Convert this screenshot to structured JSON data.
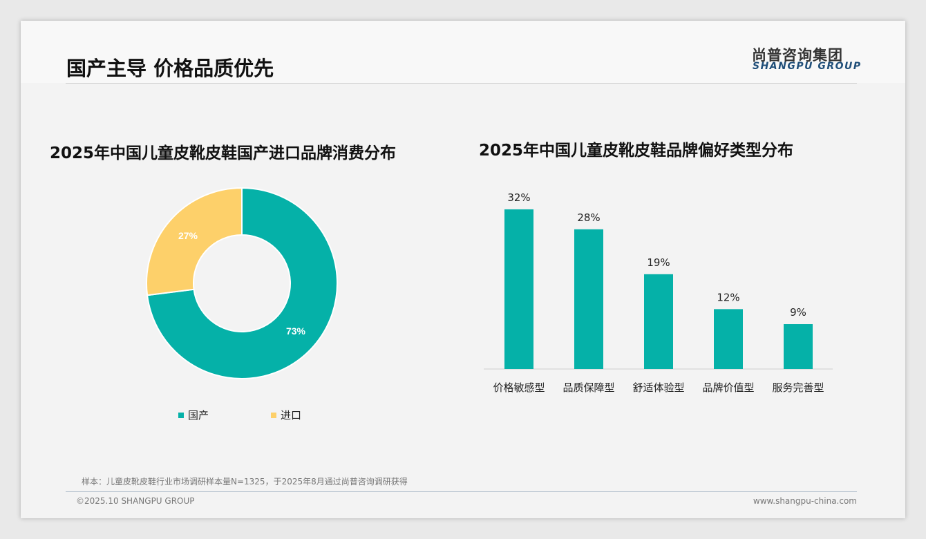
{
  "header": {
    "title": "国产主导 价格品质优先",
    "logo_cn": "尚普咨询集团",
    "logo_en": "SHANGPU GROUP"
  },
  "footer": {
    "note": "样本：儿童皮靴皮鞋行业市场调研样本量N=1325，于2025年8月通过尚普咨询调研获得",
    "copyright": "©2025.10 SHANGPU GROUP",
    "url": "www.shangpu-china.com"
  },
  "colors": {
    "teal": "#05b1a8",
    "yellow": "#fdd06a"
  },
  "chart_data": [
    {
      "type": "pie",
      "title": "2025年中国儿童皮靴皮鞋国产进口品牌消费分布",
      "categories": [
        "国产",
        "进口"
      ],
      "values": [
        73,
        27
      ],
      "labels": [
        "73%",
        "27%"
      ],
      "legend": "bottom",
      "donut": true
    },
    {
      "type": "bar",
      "title": "2025年中国儿童皮靴皮鞋品牌偏好类型分布",
      "categories": [
        "价格敏感型",
        "品质保障型",
        "舒适体验型",
        "品牌价值型",
        "服务完善型"
      ],
      "values": [
        32,
        28,
        19,
        12,
        9
      ],
      "labels": [
        "32%",
        "28%",
        "19%",
        "12%",
        "9%"
      ],
      "ylim": [
        0,
        35
      ],
      "grid": false
    }
  ]
}
